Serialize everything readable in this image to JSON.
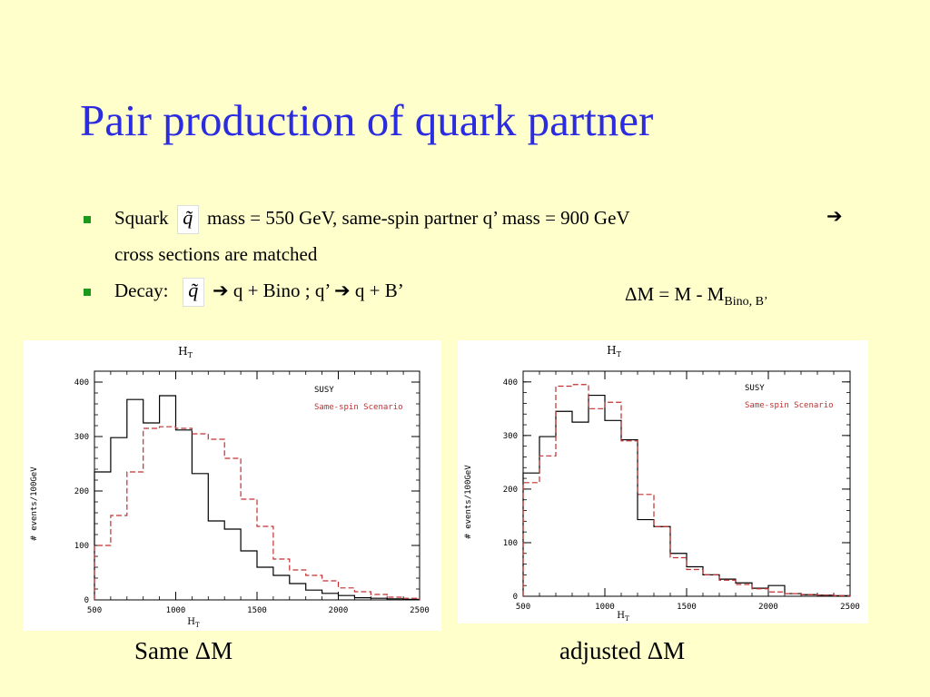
{
  "slide": {
    "title": "Pair production of quark partner",
    "bullet1": {
      "pre": "Squark",
      "post": "mass = 550 GeV, same-spin partner q’ mass = 900 GeV",
      "arrow": "➔",
      "line2": "cross sections are matched"
    },
    "bullet2": {
      "pre": "Decay:",
      "post": "➔ q + Bino ; q’ ➔ q + B’"
    },
    "qtilde": "q̃",
    "delta_m": {
      "main": "ΔM = M - M",
      "sub": "Bino, B’"
    },
    "captions": [
      "Same ΔM",
      "adjusted ΔM"
    ],
    "colors": {
      "title": "#2b2be0",
      "bullet": "#1a9a1a",
      "background": "#ffffcc",
      "susy": "#000000",
      "same_spin": "#c03030"
    }
  },
  "chart_data": [
    {
      "type": "line",
      "title": "H_T",
      "xlabel": "H_T",
      "ylabel": "# events/100GeV",
      "xlim": [
        500,
        2500
      ],
      "ylim": [
        0,
        420
      ],
      "xticks": [
        "500",
        "1000",
        "1500",
        "2000",
        "2500"
      ],
      "yticks": [
        "0",
        "100",
        "200",
        "300",
        "400"
      ],
      "legend": [
        "SUSY",
        "Same-spin Scenario"
      ],
      "legend_position": "top-right",
      "bin_edges": [
        500,
        600,
        700,
        800,
        900,
        1000,
        1100,
        1200,
        1300,
        1400,
        1500,
        1600,
        1700,
        1800,
        1900,
        2000,
        2100,
        2200,
        2300,
        2400,
        2500
      ],
      "series": [
        {
          "name": "SUSY",
          "style": "solid",
          "values": [
            235,
            298,
            368,
            325,
            375,
            312,
            232,
            145,
            130,
            90,
            60,
            45,
            30,
            18,
            12,
            8,
            4,
            3,
            2,
            1
          ]
        },
        {
          "name": "Same-spin Scenario",
          "style": "dashed",
          "values": [
            100,
            155,
            235,
            315,
            318,
            315,
            305,
            295,
            260,
            185,
            135,
            75,
            55,
            45,
            35,
            22,
            15,
            10,
            5,
            3
          ]
        }
      ]
    },
    {
      "type": "line",
      "title": "H_T",
      "xlabel": "H_T",
      "ylabel": "# events/100GeV",
      "xlim": [
        500,
        2500
      ],
      "ylim": [
        0,
        420
      ],
      "xticks": [
        "500",
        "1000",
        "1500",
        "2000",
        "2500"
      ],
      "yticks": [
        "0",
        "100",
        "200",
        "300",
        "400"
      ],
      "legend": [
        "SUSY",
        "Same-spin Scenario"
      ],
      "legend_position": "top-right",
      "bin_edges": [
        500,
        600,
        700,
        800,
        900,
        1000,
        1100,
        1200,
        1300,
        1400,
        1500,
        1600,
        1700,
        1800,
        1900,
        2000,
        2100,
        2200,
        2300,
        2400,
        2500
      ],
      "series": [
        {
          "name": "SUSY",
          "style": "solid",
          "values": [
            230,
            298,
            345,
            325,
            375,
            328,
            292,
            143,
            130,
            80,
            55,
            40,
            32,
            25,
            15,
            20,
            5,
            3,
            2,
            1
          ]
        },
        {
          "name": "Same-spin Scenario",
          "style": "dashed",
          "values": [
            212,
            262,
            392,
            395,
            350,
            362,
            290,
            190,
            130,
            72,
            50,
            40,
            30,
            22,
            14,
            8,
            5,
            3,
            2,
            1
          ]
        }
      ]
    }
  ]
}
